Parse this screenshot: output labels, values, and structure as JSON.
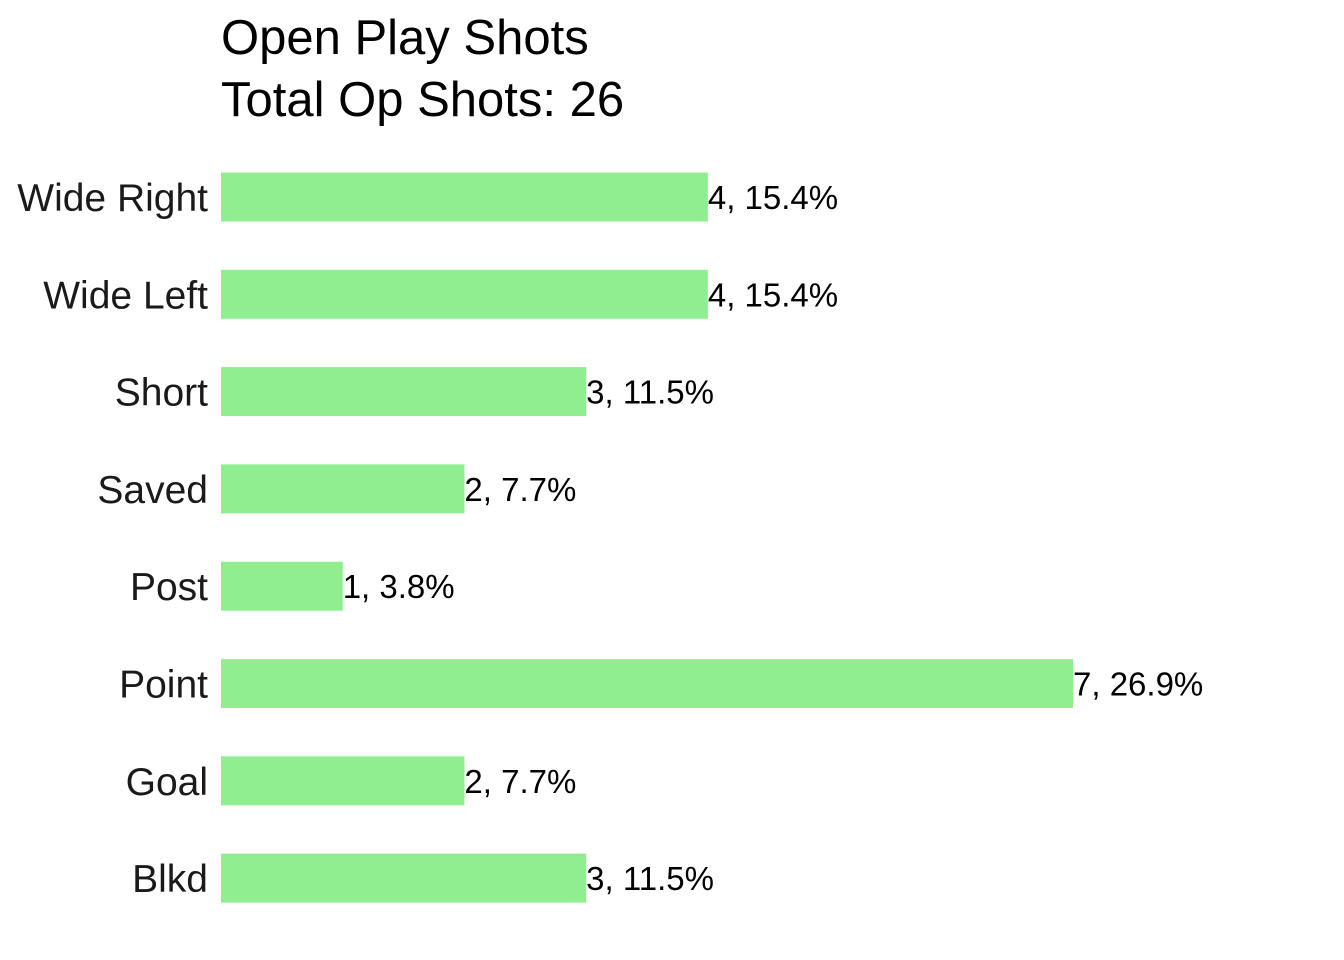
{
  "chart_data": {
    "type": "bar",
    "orientation": "horizontal",
    "title": "Open Play Shots",
    "subtitle": "Total Op Shots: 26",
    "categories": [
      "Wide Right",
      "Wide Left",
      "Short",
      "Saved",
      "Post",
      "Point",
      "Goal",
      "Blkd"
    ],
    "values": [
      4,
      4,
      3,
      2,
      1,
      7,
      2,
      3
    ],
    "data_labels": [
      "4, 15.4%",
      "4, 15.4%",
      "3, 11.5%",
      "2, 7.7%",
      "1, 3.8%",
      "7, 26.9%",
      "2, 7.7%",
      "3, 11.5%"
    ],
    "xlim": [
      0,
      7
    ],
    "xlabel": "",
    "ylabel": "",
    "grid": false,
    "legend": "none",
    "bar_color": "#90EE90"
  }
}
